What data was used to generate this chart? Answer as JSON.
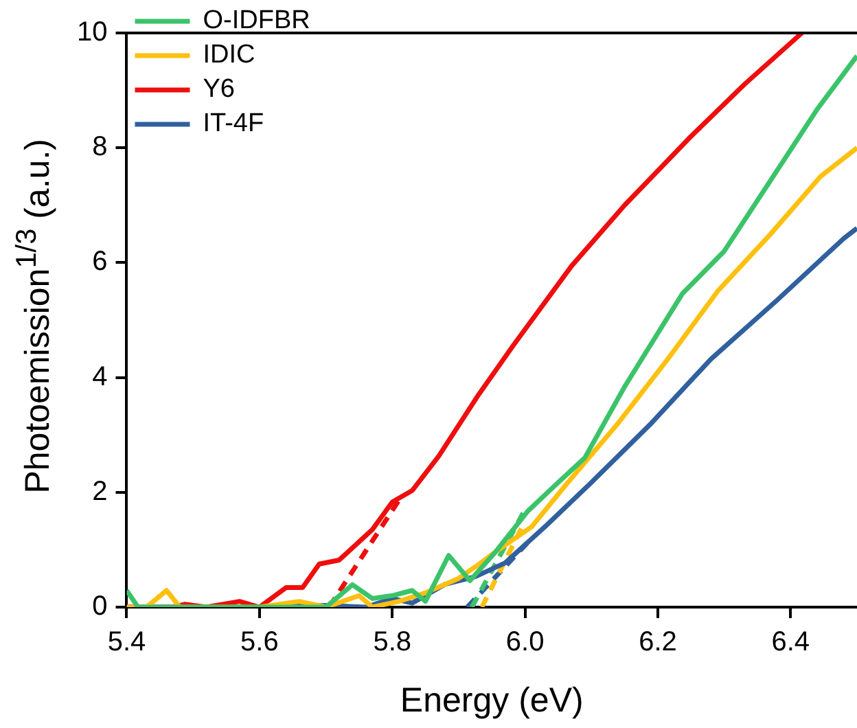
{
  "chart_data": {
    "type": "line",
    "xlabel": "Energy (eV)",
    "ylabel": "Photoemission$^{1/3}$ (a.u.)",
    "xlim": [
      5.4,
      6.5
    ],
    "xticks": [
      5.4,
      5.6,
      5.8,
      {
        "value": 6.0,
        "label": "6.0"
      },
      6.2,
      6.4
    ],
    "ylim": [
      0,
      10
    ],
    "yticks": [
      0,
      2,
      4,
      6,
      8,
      10
    ],
    "grid": false,
    "legend": "top left",
    "marker": "none",
    "series": [
      {
        "name": "O-IDFBR",
        "color": "#3cc36a",
        "x": [
          5.4,
          5.417,
          5.5,
          5.6,
          5.7,
          5.74,
          5.77,
          5.8,
          5.83,
          5.85,
          5.885,
          5.917,
          5.954,
          6.004,
          6.048,
          6.09,
          6.15,
          6.237,
          6.3,
          6.44,
          6.5
        ],
        "values": [
          0.29,
          0,
          0,
          0,
          0,
          0.39,
          0.15,
          0.2,
          0.29,
          0.1,
          0.9,
          0.46,
          0.94,
          1.67,
          2.15,
          2.6,
          3.84,
          5.46,
          6.2,
          8.67,
          9.6
        ]
      },
      {
        "name": "IDIC",
        "color": "#fdc010",
        "x": [
          5.4,
          5.43,
          5.46,
          5.48,
          5.55,
          5.6,
          5.66,
          5.7,
          5.75,
          5.77,
          5.81,
          5.85,
          5.9,
          5.925,
          5.96,
          6.01,
          6.063,
          6.14,
          6.215,
          6.29,
          6.37,
          6.445,
          6.5
        ],
        "values": [
          0,
          0,
          0.29,
          0,
          0,
          0,
          0.1,
          0,
          0.2,
          0,
          0.1,
          0.25,
          0.5,
          0.7,
          1.0,
          1.4,
          2.15,
          3.2,
          4.32,
          5.5,
          6.5,
          7.5,
          8.0
        ]
      },
      {
        "name": "Y6",
        "color": "#ee0e0e",
        "x": [
          5.4,
          5.47,
          5.487,
          5.52,
          5.57,
          5.6,
          5.64,
          5.665,
          5.69,
          5.72,
          5.77,
          5.8,
          5.83,
          5.87,
          5.93,
          5.983,
          6.07,
          6.15,
          6.25,
          6.33,
          6.417
        ],
        "values": [
          0,
          0,
          0.05,
          0,
          0.1,
          0,
          0.34,
          0.34,
          0.75,
          0.82,
          1.35,
          1.83,
          2.03,
          2.63,
          3.7,
          4.57,
          5.94,
          7.0,
          8.2,
          9.1,
          10.0
        ]
      },
      {
        "name": "IT-4F",
        "color": "#30609e",
        "x": [
          5.4,
          5.6,
          5.7,
          5.76,
          5.8,
          5.83,
          5.88,
          5.925,
          5.97,
          6.03,
          6.098,
          6.19,
          6.28,
          6.38,
          6.48,
          6.5
        ],
        "values": [
          0,
          0,
          0.03,
          0,
          0.15,
          0.07,
          0.4,
          0.53,
          0.77,
          1.4,
          2.15,
          3.2,
          4.32,
          5.35,
          6.42,
          6.6
        ]
      },
      {
        "color": "#3cc36a",
        "line_style": "dashed",
        "x": [
          5.92,
          6.0
        ],
        "values": [
          0,
          1.7
        ]
      },
      {
        "color": "#fdc010",
        "line_style": "dashed",
        "x": [
          5.935,
          6.0
        ],
        "values": [
          0,
          1.5
        ]
      },
      {
        "color": "#ee0e0e",
        "line_style": "dashed",
        "x": [
          5.705,
          5.815
        ],
        "values": [
          0,
          1.95
        ]
      },
      {
        "color": "#30609e",
        "line_style": "dashed",
        "x": [
          5.913,
          6.01
        ],
        "values": [
          0,
          1.2
        ]
      }
    ]
  }
}
